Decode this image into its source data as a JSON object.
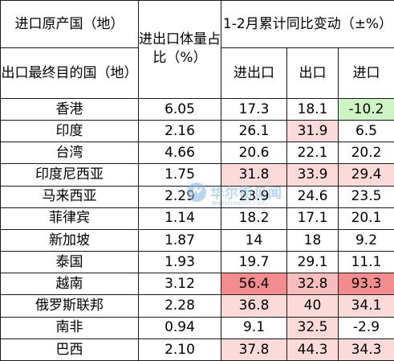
{
  "header": {
    "origin_label": "进口原产国（地）",
    "dest_label": "出口最终目的国（地）",
    "share_label": "进出口体量占比（%）",
    "change_title": "1-2月累计同比变动（±%）",
    "sub_total": "进出口",
    "sub_export": "出口",
    "sub_import": "进口"
  },
  "rows": [
    {
      "region": "香港",
      "share": "6.05",
      "total": "17.3",
      "export": "18.1",
      "import": "-10.2"
    },
    {
      "region": "印度",
      "share": "2.16",
      "total": "26.1",
      "export": "31.9",
      "import": "6.5"
    },
    {
      "region": "台湾",
      "share": "4.66",
      "total": "20.6",
      "export": "22.1",
      "import": "20.2"
    },
    {
      "region": "印度尼西亚",
      "share": "1.75",
      "total": "31.8",
      "export": "33.9",
      "import": "29.4"
    },
    {
      "region": "马来西亚",
      "share": "2.29",
      "total": "23.9",
      "export": "24.6",
      "import": "23.5"
    },
    {
      "region": "菲律宾",
      "share": "1.14",
      "total": "18.2",
      "export": "17.1",
      "import": "20.1"
    },
    {
      "region": "新加坡",
      "share": "1.87",
      "total": "14",
      "export": "18",
      "import": "9.2"
    },
    {
      "region": "泰国",
      "share": "1.93",
      "total": "19.7",
      "export": "29.1",
      "import": "11.1"
    },
    {
      "region": "越南",
      "share": "3.12",
      "total": "56.4",
      "export": "32.8",
      "import": "93.3"
    },
    {
      "region": "俄罗斯联邦",
      "share": "2.28",
      "total": "36.8",
      "export": "40",
      "import": "34.1"
    },
    {
      "region": "南非",
      "share": "0.94",
      "total": "9.1",
      "export": "32.5",
      "import": "-2.9"
    },
    {
      "region": "巴西",
      "share": "2.10",
      "total": "37.8",
      "export": "44.3",
      "import": "34.3"
    }
  ],
  "watermark": {
    "cn": "华尔街见闻",
    "en": "wallstreetcn.com"
  },
  "colors": {
    "pale": "#fcdada",
    "mid": "#f7bcbc",
    "strong": "#f38d8d",
    "green": "#cdf5c4"
  }
}
